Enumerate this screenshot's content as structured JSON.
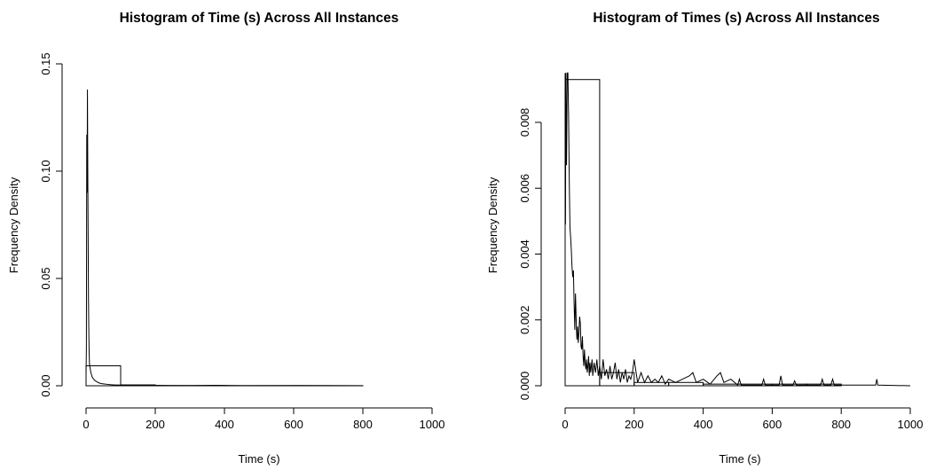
{
  "chart_data": [
    {
      "type": "histogram",
      "title": "Histogram of Time (s) Across All Instances",
      "xlabel": "Time (s)",
      "ylabel": "Frequency Density",
      "xlim": [
        0,
        1000
      ],
      "ylim": [
        0,
        0.15
      ],
      "x_ticks": [
        0,
        200,
        400,
        600,
        800,
        1000
      ],
      "y_ticks": [
        "0.00",
        "0.05",
        "0.10",
        "0.15"
      ],
      "bins": [
        {
          "x0": 0,
          "x1": 100,
          "density": 0.0093
        },
        {
          "x0": 100,
          "x1": 200,
          "density": 0.0004
        },
        {
          "x0": 200,
          "x1": 300,
          "density": 0.0001
        },
        {
          "x0": 300,
          "x1": 400,
          "density": 0.0001
        },
        {
          "x0": 400,
          "x1": 500,
          "density": 5e-05
        },
        {
          "x0": 500,
          "x1": 600,
          "density": 5e-05
        },
        {
          "x0": 600,
          "x1": 700,
          "density": 5e-05
        },
        {
          "x0": 700,
          "x1": 800,
          "density": 5e-05
        }
      ],
      "density_curve": {
        "x": [
          0,
          1,
          2,
          3,
          4,
          5,
          6,
          7,
          8,
          9,
          10,
          12,
          14,
          16,
          18,
          20,
          25,
          30,
          35,
          40,
          45,
          50,
          60,
          70,
          80,
          100,
          120,
          150,
          180,
          200,
          240,
          300,
          370,
          450,
          620,
          800
        ],
        "y": [
          0.005,
          0.018,
          0.117,
          0.09,
          0.138,
          0.1,
          0.07,
          0.04,
          0.025,
          0.015,
          0.01,
          0.008,
          0.006,
          0.005,
          0.004,
          0.0035,
          0.0025,
          0.002,
          0.0015,
          0.0012,
          0.001,
          0.0009,
          0.0007,
          0.0005,
          0.0004,
          0.0003,
          0.0002,
          0.00015,
          0.0001,
          0.0002,
          0.0001,
          5e-05,
          0.0002,
          5e-05,
          0.0001,
          2e-05
        ]
      }
    },
    {
      "type": "histogram",
      "title": "Histogram of Times (s) Across All Instances",
      "xlabel": "Time (s)",
      "ylabel": "Frequency Density",
      "xlim": [
        0,
        1000
      ],
      "ylim": [
        0,
        0.0094
      ],
      "x_ticks": [
        0,
        200,
        400,
        600,
        800,
        1000
      ],
      "y_ticks": [
        "0.000",
        "0.002",
        "0.004",
        "0.006",
        "0.008"
      ],
      "bins": [
        {
          "x0": 0,
          "x1": 100,
          "density": 0.0093
        },
        {
          "x0": 100,
          "x1": 200,
          "density": 0.0004
        },
        {
          "x0": 200,
          "x1": 300,
          "density": 0.0001
        },
        {
          "x0": 300,
          "x1": 400,
          "density": 0.0001
        },
        {
          "x0": 400,
          "x1": 500,
          "density": 5e-05
        },
        {
          "x0": 500,
          "x1": 600,
          "density": 5e-05
        },
        {
          "x0": 600,
          "x1": 700,
          "density": 5e-05
        },
        {
          "x0": 700,
          "x1": 800,
          "density": 5e-05
        }
      ],
      "density_curve": {
        "x": [
          0,
          1,
          2,
          4,
          6,
          8,
          10,
          12,
          14,
          16,
          18,
          20,
          22,
          24,
          26,
          28,
          30,
          32,
          34,
          36,
          38,
          40,
          42,
          44,
          46,
          48,
          50,
          52,
          54,
          56,
          58,
          60,
          62,
          64,
          66,
          68,
          70,
          72,
          74,
          76,
          78,
          80,
          84,
          88,
          92,
          96,
          100,
          105,
          110,
          115,
          120,
          125,
          130,
          135,
          140,
          145,
          150,
          155,
          160,
          165,
          170,
          175,
          180,
          185,
          190,
          195,
          200,
          210,
          220,
          230,
          240,
          250,
          260,
          270,
          280,
          290,
          300,
          320,
          340,
          360,
          370,
          380,
          400,
          420,
          440,
          450,
          460,
          480,
          500,
          505,
          510,
          540,
          570,
          575,
          580,
          600,
          620,
          625,
          630,
          660,
          665,
          670,
          700,
          740,
          745,
          750,
          770,
          775,
          780,
          800,
          900,
          903,
          906,
          1000
        ],
        "y": [
          0.0095,
          0.0049,
          0.0095,
          0.0067,
          0.0095,
          0.0095,
          0.0082,
          0.0062,
          0.0048,
          0.0045,
          0.0041,
          0.0036,
          0.0033,
          0.0035,
          0.0025,
          0.0017,
          0.0028,
          0.002,
          0.0014,
          0.0018,
          0.0013,
          0.0016,
          0.0021,
          0.0019,
          0.0012,
          0.0011,
          0.0015,
          0.0009,
          0.0006,
          0.0011,
          0.0007,
          0.0005,
          0.0008,
          0.0004,
          0.0006,
          0.0009,
          0.0003,
          0.0007,
          0.0004,
          0.0006,
          0.0008,
          0.0003,
          0.0007,
          0.0004,
          0.0008,
          0.0003,
          0.0006,
          0.0002,
          0.0008,
          0.0003,
          0.0005,
          0.0002,
          0.0006,
          0.0002,
          0.0004,
          0.0007,
          0.0002,
          0.0005,
          0.0001,
          0.0004,
          0.0002,
          0.0005,
          0.0001,
          0.0003,
          0.0002,
          0.0004,
          0.0008,
          0.0001,
          0.0004,
          0.0001,
          0.0003,
          0.0001,
          0.0002,
          0.0001,
          0.0003,
          5e-05,
          0.0002,
          0.0001,
          0.0002,
          0.0003,
          0.0004,
          0.0001,
          0.0002,
          5e-05,
          0.0003,
          0.0004,
          0.0001,
          0.0002,
          2e-05,
          0.0002,
          2e-05,
          2e-05,
          2e-05,
          0.0002,
          2e-05,
          2e-05,
          2e-05,
          0.0003,
          2e-05,
          2e-05,
          0.00015,
          2e-05,
          2e-05,
          2e-05,
          0.0002,
          2e-05,
          2e-05,
          0.0002,
          2e-05,
          2e-05,
          2e-05,
          0.0002,
          2e-05,
          0.0
        ]
      }
    }
  ]
}
